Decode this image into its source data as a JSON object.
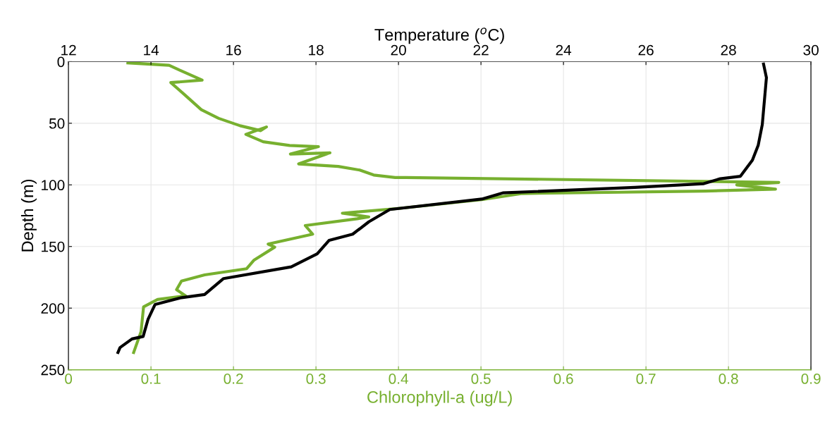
{
  "chart_data": {
    "type": "line",
    "xlabel": "Chlorophyll-a (ug/L)",
    "x2label": "Temperature ($^{o}$C)",
    "ylabel": "Depth (m)",
    "xlim": [
      0,
      0.9
    ],
    "xticks": [
      0,
      0.1,
      0.2,
      0.3,
      0.4,
      0.5,
      0.6,
      0.7,
      0.8,
      0.9
    ],
    "x2lim": [
      12,
      30
    ],
    "x2ticks": [
      12,
      14,
      16,
      18,
      20,
      22,
      24,
      26,
      28,
      30
    ],
    "ylim": [
      250,
      0
    ],
    "yticks": [
      0,
      50,
      100,
      150,
      200,
      250
    ],
    "grid": true,
    "line_style": "solid",
    "marker": "none",
    "series": [
      {
        "color": "#77b02f",
        "x": [
          0.072,
          0.122,
          0.135,
          0.162,
          0.124,
          0.141,
          0.161,
          0.182,
          0.208,
          0.233,
          0.24,
          0.215,
          0.236,
          0.268,
          0.303,
          0.269,
          0.317,
          0.279,
          0.327,
          0.353,
          0.37,
          0.396,
          0.409,
          0.861,
          0.81,
          0.857,
          0.772,
          0.55,
          0.501,
          0.402,
          0.332,
          0.364,
          0.35,
          0.287,
          0.296,
          0.242,
          0.25,
          0.225,
          0.216,
          0.165,
          0.137,
          0.131,
          0.142,
          0.108,
          0.091,
          0.088,
          0.079
        ],
        "values": [
          1,
          3,
          7,
          15,
          17,
          27,
          39,
          46,
          52,
          56,
          53,
          59,
          65,
          68,
          69,
          75,
          74,
          83,
          85,
          88,
          92,
          94,
          94,
          98,
          100,
          103.5,
          105,
          107,
          112,
          119,
          123,
          126,
          127.5,
          133,
          140,
          148,
          150.5,
          161,
          168,
          173,
          178,
          185,
          190,
          193,
          199,
          219,
          236
        ]
      },
      {
        "axis": "x2",
        "color": "#000000",
        "x": [
          28.85,
          28.92,
          28.82,
          28.72,
          28.58,
          28.29,
          27.8,
          27.4,
          25.73,
          22.53,
          22.02,
          19.79,
          19.28,
          18.89,
          18.32,
          18.03,
          17.4,
          15.76,
          15.3,
          14.74,
          14.1,
          13.93,
          13.81,
          13.54,
          13.25,
          13.2
        ],
        "values": [
          2,
          13,
          51,
          68,
          80,
          93,
          95,
          99,
          102,
          106.5,
          111.5,
          120,
          130,
          140,
          145,
          156,
          166.5,
          176,
          189,
          191.5,
          197,
          209,
          223,
          225,
          232,
          236
        ]
      }
    ]
  }
}
